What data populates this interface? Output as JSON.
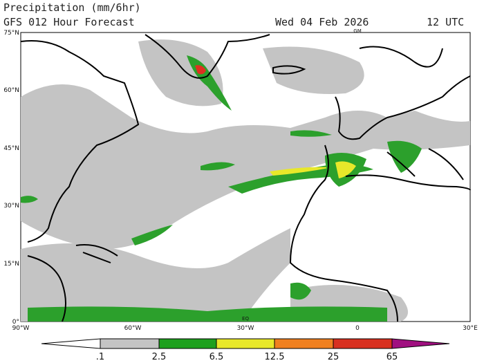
{
  "header": {
    "title": "Precipitation (mm/6hr)",
    "subtitle": "GFS 012 Hour Forecast",
    "date": "Wed 04 Feb 2026",
    "time": "12 UTC"
  },
  "map": {
    "lat_labels": [
      "75°N",
      "60°N",
      "45°N",
      "30°N",
      "15°N",
      "0°"
    ],
    "lon_labels": [
      "90°W",
      "60°W",
      "30°W",
      "0",
      "30°E"
    ],
    "marker_labels": [
      "GM",
      "EQ"
    ]
  },
  "colorbar": {
    "labels": [
      ".1",
      "2.5",
      "6.5",
      "12.5",
      "25",
      "65"
    ]
  }
}
